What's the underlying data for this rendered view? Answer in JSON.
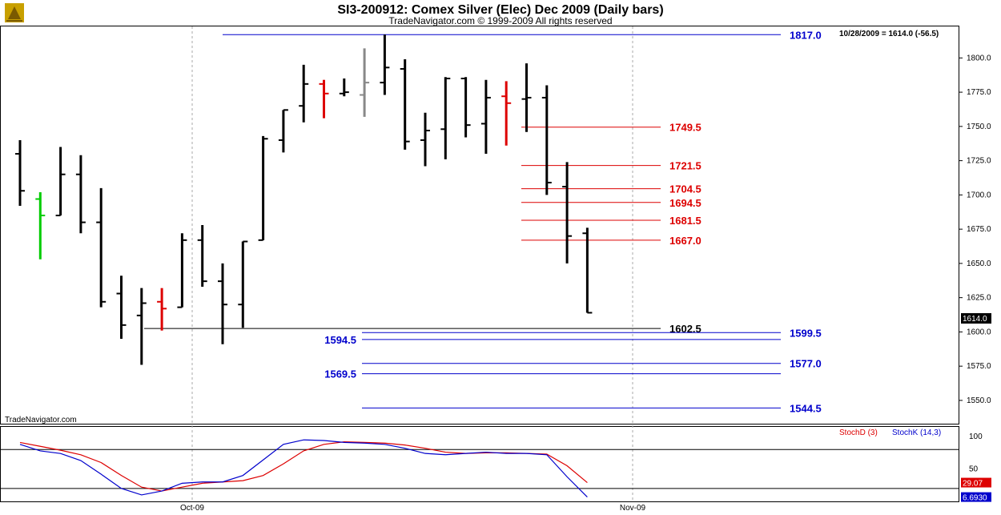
{
  "header": {
    "title": "SI3-200912:  Comex Silver (Elec) Dec 2009  (Daily bars)",
    "copyright": "TradeNavigator.com © 1999-2009 All rights reserved",
    "readout": "10/28/2009 = 1614.0 (-56.5)",
    "brand": "TradeNavigator.com",
    "last_price": "1614.0"
  },
  "colors": {
    "bar_black": "#000000",
    "bar_red": "#dd0000",
    "bar_grey": "#888888",
    "bar_green": "#00cc00",
    "level_red": "#dd0000",
    "level_blue": "#0000cc",
    "level_black": "#000000",
    "stoch_d": "#dd0000",
    "stoch_k": "#0000cc"
  },
  "chart_data": [
    {
      "type": "ohlc",
      "ylim": [
        1533,
        1823
      ],
      "yticks": [
        "1550.0",
        "1575.0",
        "1600.0",
        "1625.0",
        "1650.0",
        "1675.0",
        "1700.0",
        "1725.0",
        "1750.0",
        "1775.0",
        "1800.0"
      ],
      "xtick_labels": [
        "Oct-09",
        "Nov-09"
      ],
      "bars": [
        {
          "o": 1730,
          "h": 1740,
          "l": 1692,
          "c": 1703,
          "color": "black"
        },
        {
          "o": 1697,
          "h": 1702,
          "l": 1653,
          "c": 1685,
          "color": "green"
        },
        {
          "o": 1685,
          "h": 1735,
          "l": 1685,
          "c": 1715,
          "color": "black"
        },
        {
          "o": 1715,
          "h": 1729,
          "l": 1672,
          "c": 1680,
          "color": "black"
        },
        {
          "o": 1680,
          "h": 1705,
          "l": 1618,
          "c": 1622,
          "color": "black"
        },
        {
          "o": 1628,
          "h": 1641,
          "l": 1595,
          "c": 1605,
          "color": "black"
        },
        {
          "o": 1612,
          "h": 1632,
          "l": 1576,
          "c": 1621,
          "color": "black"
        },
        {
          "o": 1622,
          "h": 1632,
          "l": 1601,
          "c": 1617,
          "color": "red"
        },
        {
          "o": 1618,
          "h": 1672,
          "l": 1618,
          "c": 1667,
          "color": "black"
        },
        {
          "o": 1667,
          "h": 1678,
          "l": 1633,
          "c": 1637,
          "color": "black"
        },
        {
          "o": 1637,
          "h": 1650,
          "l": 1591,
          "c": 1620,
          "color": "black"
        },
        {
          "o": 1620,
          "h": 1666,
          "l": 1603,
          "c": 1666,
          "color": "black"
        },
        {
          "o": 1667,
          "h": 1743,
          "l": 1667,
          "c": 1741,
          "color": "black"
        },
        {
          "o": 1740,
          "h": 1762,
          "l": 1731,
          "c": 1762,
          "color": "black"
        },
        {
          "o": 1765,
          "h": 1795,
          "l": 1753,
          "c": 1781,
          "color": "black"
        },
        {
          "o": 1781,
          "h": 1784,
          "l": 1756,
          "c": 1774,
          "color": "red"
        },
        {
          "o": 1774,
          "h": 1785,
          "l": 1772,
          "c": 1775,
          "color": "black"
        },
        {
          "o": 1773,
          "h": 1807,
          "l": 1757,
          "c": 1782,
          "color": "grey"
        },
        {
          "o": 1782,
          "h": 1817,
          "l": 1773,
          "c": 1793,
          "color": "black"
        },
        {
          "o": 1792,
          "h": 1799,
          "l": 1733,
          "c": 1739,
          "color": "black"
        },
        {
          "o": 1740,
          "h": 1760,
          "l": 1721,
          "c": 1747,
          "color": "black"
        },
        {
          "o": 1748,
          "h": 1786,
          "l": 1726,
          "c": 1785,
          "color": "black"
        },
        {
          "o": 1785,
          "h": 1786,
          "l": 1742,
          "c": 1751,
          "color": "black"
        },
        {
          "o": 1752,
          "h": 1784,
          "l": 1730,
          "c": 1771,
          "color": "black"
        },
        {
          "o": 1772,
          "h": 1783,
          "l": 1736,
          "c": 1767,
          "color": "red"
        },
        {
          "o": 1770,
          "h": 1796,
          "l": 1746,
          "c": 1771,
          "color": "black"
        },
        {
          "o": 1771,
          "h": 1780,
          "l": 1700,
          "c": 1709,
          "color": "black"
        },
        {
          "o": 1706,
          "h": 1724,
          "l": 1650,
          "c": 1670,
          "color": "black"
        },
        {
          "o": 1672,
          "h": 1676,
          "l": 1614,
          "c": 1614,
          "color": "black"
        }
      ],
      "levels": [
        {
          "label": "1817.0",
          "value": 1817.0,
          "color": "blue",
          "side": "right"
        },
        {
          "label": "1749.5",
          "value": 1749.5,
          "color": "red",
          "side": "mid"
        },
        {
          "label": "1721.5",
          "value": 1721.5,
          "color": "red",
          "side": "mid"
        },
        {
          "label": "1704.5",
          "value": 1704.5,
          "color": "red",
          "side": "mid"
        },
        {
          "label": "1694.5",
          "value": 1694.5,
          "color": "red",
          "side": "mid"
        },
        {
          "label": "1681.5",
          "value": 1681.5,
          "color": "red",
          "side": "mid"
        },
        {
          "label": "1667.0",
          "value": 1667.0,
          "color": "red",
          "side": "mid"
        },
        {
          "label": "1602.5",
          "value": 1602.5,
          "color": "black",
          "side": "mid"
        },
        {
          "label": "1599.5",
          "value": 1599.5,
          "color": "blue",
          "side": "right"
        },
        {
          "label": "1594.5",
          "value": 1594.5,
          "color": "blue",
          "side": "left"
        },
        {
          "label": "1577.0",
          "value": 1577.0,
          "color": "blue",
          "side": "right"
        },
        {
          "label": "1569.5",
          "value": 1569.5,
          "color": "blue",
          "side": "left"
        },
        {
          "label": "1544.5",
          "value": 1544.5,
          "color": "blue",
          "side": "right"
        }
      ]
    },
    {
      "type": "line",
      "ylim": [
        0,
        115
      ],
      "yticks": [
        "100",
        "50"
      ],
      "reference_lines": [
        80,
        20
      ],
      "legend": [
        "StochD (3)",
        "StochK (14,3)"
      ],
      "series": [
        {
          "name": "StochD (3)",
          "color": "red",
          "last_label": "29.07",
          "values": [
            91,
            85,
            79,
            72,
            60,
            40,
            22,
            16,
            22,
            28,
            30,
            32,
            40,
            58,
            78,
            88,
            92,
            91,
            90,
            87,
            82,
            76,
            74,
            75,
            75,
            74,
            73,
            55,
            29
          ]
        },
        {
          "name": "StochK (14,3)",
          "color": "blue",
          "last_label": "6.6930",
          "values": [
            88,
            78,
            74,
            63,
            42,
            20,
            10,
            16,
            28,
            30,
            30,
            40,
            64,
            88,
            95,
            94,
            91,
            90,
            88,
            82,
            74,
            72,
            74,
            76,
            74,
            74,
            72,
            38,
            6.69
          ]
        }
      ]
    }
  ]
}
